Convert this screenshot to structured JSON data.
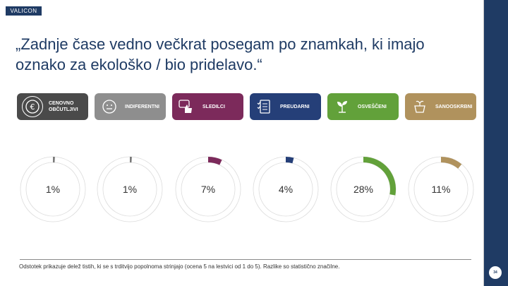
{
  "brand": {
    "logo_text": "VALICON"
  },
  "slide": {
    "title": "„Zadnje čase vedno večkrat posegam po znamkah, ki imajo oznako za ekološko / bio pridelavo.“",
    "footnote": "Odstotek prikazuje delež tistih, ki se s trditvijo popolnoma strinjajo (ocena 5 na lestvici od 1 do 5). Razlike so statistično značilne.",
    "page_number": "34"
  },
  "segments": [
    {
      "label": "CENOVNO OBČUTLJIVI",
      "color": "#4a4a4a",
      "icon": "euro-icon"
    },
    {
      "label": "INDIFERENTNI",
      "color": "#8e8e8e",
      "icon": "neutral-face-icon"
    },
    {
      "label": "SLEDILCI",
      "color": "#7c2a5b",
      "icon": "thumbs-up-icon"
    },
    {
      "label": "PREUDARNI",
      "color": "#253f78",
      "icon": "checklist-icon"
    },
    {
      "label": "OSVEŠČENI",
      "color": "#62a13a",
      "icon": "plant-icon"
    },
    {
      "label": "SANOOSKRBNI",
      "color": "#b0925d",
      "icon": "pot-icon"
    }
  ],
  "chart_data": {
    "type": "pie",
    "title": "„Zadnje čase vedno večkrat posegam po znamkah, ki imajo oznako za ekološko / bio pridelavo.“",
    "categories": [
      "CENOVNO OBČUTLJIVI",
      "INDIFERENTNI",
      "SLEDILCI",
      "PREUDARNI",
      "OSVEŠČENI",
      "SANOOSKRBNI"
    ],
    "values": [
      1,
      1,
      7,
      4,
      28,
      11
    ],
    "labels": [
      "1%",
      "1%",
      "7%",
      "4%",
      "28%",
      "11%"
    ],
    "colors": [
      "#7a7a7a",
      "#7a7a7a",
      "#7c2a5b",
      "#253f78",
      "#62a13a",
      "#b0925d"
    ],
    "unit": "%"
  }
}
